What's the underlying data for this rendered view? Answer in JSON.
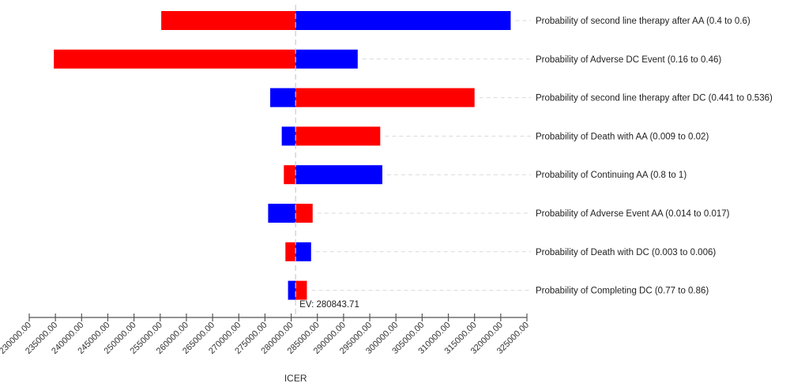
{
  "chart_data": {
    "type": "tornado",
    "xlabel": "ICER",
    "ev_label": "EV: 280843.71",
    "ev": 280843.71,
    "xlim": [
      230000,
      325000
    ],
    "ticks": [
      230000,
      235000,
      240000,
      245000,
      250000,
      255000,
      260000,
      265000,
      270000,
      275000,
      280000,
      285000,
      290000,
      295000,
      300000,
      305000,
      310000,
      315000,
      320000,
      325000
    ],
    "tick_labels": [
      "230000.00",
      "235000.00",
      "240000.00",
      "245000.00",
      "250000.00",
      "255000.00",
      "260000.00",
      "265000.00",
      "270000.00",
      "275000.00",
      "280000.00",
      "285000.00",
      "290000.00",
      "295000.00",
      "300000.00",
      "305000.00",
      "310000.00",
      "315000.00",
      "320000.00",
      "325000.00"
    ],
    "colors": {
      "red": "#ff0000",
      "blue": "#0000ff",
      "ev_line": "#cccccc",
      "axis": "#555555"
    },
    "bars": [
      {
        "label": "Probability of second line therapy after AA (0.4 to 0.6)",
        "red": 255200,
        "blue": 321900
      },
      {
        "label": "Probability of Adverse DC Event (0.16 to 0.46)",
        "red": 234700,
        "blue": 292700
      },
      {
        "label": "Probability of second line therapy after DC (0.441 to 0.536)",
        "red": 315000,
        "blue": 276000
      },
      {
        "label": "Probability of Death with AA (0.009 to 0.02)",
        "red": 297000,
        "blue": 278200
      },
      {
        "label": "Probability of Continuing AA (0.8 to 1)",
        "red": 278600,
        "blue": 297400
      },
      {
        "label": "Probability of Adverse Event AA (0.014 to 0.017)",
        "red": 284100,
        "blue": 275600
      },
      {
        "label": "Probability of Death with DC (0.003 to 0.006)",
        "red": 278900,
        "blue": 283800
      },
      {
        "label": "Probability of Completing DC (0.77 to 0.86)",
        "red": 283000,
        "blue": 279400
      }
    ]
  }
}
